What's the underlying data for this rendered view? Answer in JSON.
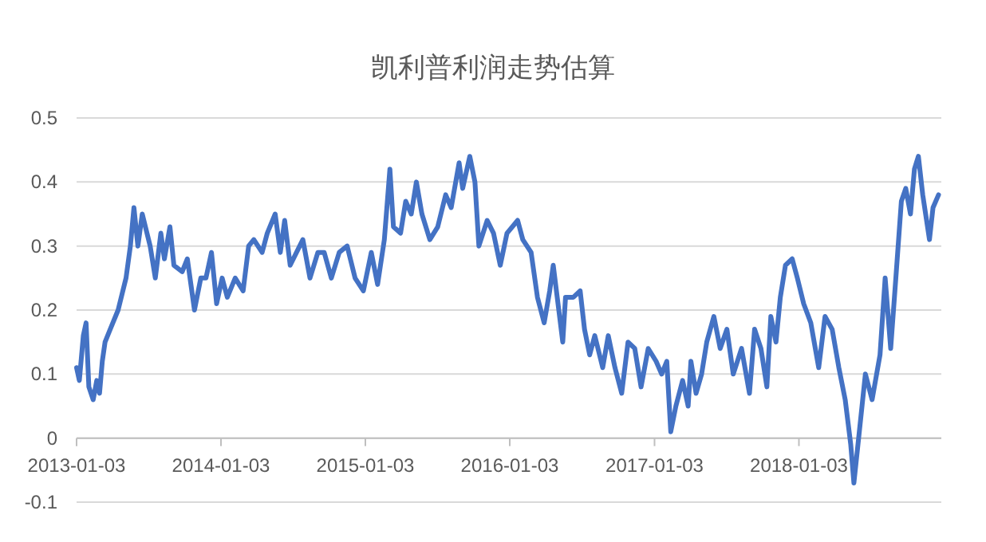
{
  "chart_data": {
    "type": "line",
    "title": "凯利普利润走势估算",
    "grid": "y",
    "marker": "none",
    "line_style": "solid",
    "ylim": [
      -0.1,
      0.5
    ],
    "yticks": [
      -0.1,
      0,
      0.1,
      0.2,
      0.3,
      0.4,
      0.5
    ],
    "xlim": [
      "2013-01-03",
      "2018-12-29"
    ],
    "xticks": [
      "2013-01-03",
      "2014-01-03",
      "2015-01-03",
      "2016-01-03",
      "2017-01-03",
      "2018-01-03"
    ],
    "x": [
      "2013-01-03",
      "2013-01-10",
      "2013-01-20",
      "2013-01-27",
      "2013-02-03",
      "2013-02-14",
      "2013-02-23",
      "2013-03-02",
      "2013-03-09",
      "2013-03-16",
      "2013-03-29",
      "2013-04-18",
      "2013-05-08",
      "2013-05-19",
      "2013-05-28",
      "2013-06-07",
      "2013-06-18",
      "2013-07-08",
      "2013-07-21",
      "2013-08-04",
      "2013-08-13",
      "2013-08-27",
      "2013-09-06",
      "2013-09-27",
      "2013-10-10",
      "2013-10-28",
      "2013-11-13",
      "2013-11-26",
      "2013-12-10",
      "2013-12-23",
      "2014-01-06",
      "2014-01-19",
      "2014-02-08",
      "2014-02-28",
      "2014-03-14",
      "2014-03-27",
      "2014-04-17",
      "2014-04-30",
      "2014-05-20",
      "2014-06-02",
      "2014-06-13",
      "2014-06-27",
      "2014-07-13",
      "2014-07-29",
      "2014-08-16",
      "2014-09-05",
      "2014-09-21",
      "2014-10-09",
      "2014-10-29",
      "2014-11-18",
      "2014-12-08",
      "2014-12-29",
      "2015-01-18",
      "2015-02-03",
      "2015-02-20",
      "2015-03-06",
      "2015-03-15",
      "2015-04-02",
      "2015-04-15",
      "2015-04-29",
      "2015-05-12",
      "2015-05-26",
      "2015-06-15",
      "2015-07-05",
      "2015-07-25",
      "2015-08-08",
      "2015-08-28",
      "2015-09-06",
      "2015-09-24",
      "2015-10-07",
      "2015-10-17",
      "2015-11-07",
      "2015-11-23",
      "2015-12-10",
      "2015-12-27",
      "2016-01-23",
      "2016-02-05",
      "2016-02-26",
      "2016-03-13",
      "2016-03-30",
      "2016-04-13",
      "2016-04-22",
      "2016-05-16",
      "2016-05-23",
      "2016-06-12",
      "2016-06-29",
      "2016-07-10",
      "2016-07-23",
      "2016-08-05",
      "2016-08-25",
      "2016-09-08",
      "2016-09-25",
      "2016-10-12",
      "2016-10-28",
      "2016-11-14",
      "2016-11-30",
      "2016-12-18",
      "2017-01-07",
      "2017-01-21",
      "2017-02-03",
      "2017-02-13",
      "2017-02-26",
      "2017-03-15",
      "2017-03-29",
      "2017-04-05",
      "2017-04-18",
      "2017-05-02",
      "2017-05-15",
      "2017-06-02",
      "2017-06-18",
      "2017-07-05",
      "2017-07-21",
      "2017-08-11",
      "2017-08-31",
      "2017-09-13",
      "2017-09-29",
      "2017-10-14",
      "2017-10-24",
      "2017-11-06",
      "2017-11-17",
      "2017-11-30",
      "2017-12-17",
      "2017-12-30",
      "2018-01-15",
      "2018-02-02",
      "2018-02-22",
      "2018-03-10",
      "2018-03-28",
      "2018-04-14",
      "2018-04-30",
      "2018-05-14",
      "2018-05-22",
      "2018-06-03",
      "2018-06-20",
      "2018-07-07",
      "2018-07-27",
      "2018-08-09",
      "2018-08-23",
      "2018-09-05",
      "2018-09-19",
      "2018-09-30",
      "2018-10-12",
      "2018-10-22",
      "2018-11-01",
      "2018-11-12",
      "2018-11-29",
      "2018-12-08",
      "2018-12-22"
    ],
    "series": [
      {
        "color": "#4472c4",
        "values": [
          0.11,
          0.09,
          0.16,
          0.18,
          0.08,
          0.06,
          0.09,
          0.07,
          0.12,
          0.15,
          0.17,
          0.2,
          0.25,
          0.3,
          0.36,
          0.3,
          0.35,
          0.3,
          0.25,
          0.32,
          0.28,
          0.33,
          0.27,
          0.26,
          0.28,
          0.2,
          0.25,
          0.25,
          0.29,
          0.21,
          0.25,
          0.22,
          0.25,
          0.23,
          0.3,
          0.31,
          0.29,
          0.32,
          0.35,
          0.29,
          0.34,
          0.27,
          0.29,
          0.31,
          0.25,
          0.29,
          0.29,
          0.25,
          0.29,
          0.3,
          0.25,
          0.23,
          0.29,
          0.24,
          0.31,
          0.42,
          0.33,
          0.32,
          0.37,
          0.35,
          0.4,
          0.35,
          0.31,
          0.33,
          0.38,
          0.36,
          0.43,
          0.39,
          0.44,
          0.4,
          0.3,
          0.34,
          0.32,
          0.27,
          0.32,
          0.34,
          0.31,
          0.29,
          0.22,
          0.18,
          0.23,
          0.27,
          0.15,
          0.22,
          0.22,
          0.23,
          0.17,
          0.13,
          0.16,
          0.11,
          0.16,
          0.11,
          0.07,
          0.15,
          0.14,
          0.08,
          0.14,
          0.12,
          0.1,
          0.12,
          0.01,
          0.05,
          0.09,
          0.05,
          0.12,
          0.07,
          0.1,
          0.15,
          0.19,
          0.14,
          0.17,
          0.1,
          0.14,
          0.07,
          0.17,
          0.14,
          0.08,
          0.19,
          0.15,
          0.22,
          0.27,
          0.28,
          0.25,
          0.21,
          0.18,
          0.11,
          0.19,
          0.17,
          0.11,
          0.06,
          -0.01,
          -0.07,
          0.0,
          0.1,
          0.06,
          0.13,
          0.25,
          0.14,
          0.25,
          0.37,
          0.39,
          0.35,
          0.42,
          0.44,
          0.38,
          0.31,
          0.36,
          0.38
        ]
      }
    ]
  }
}
